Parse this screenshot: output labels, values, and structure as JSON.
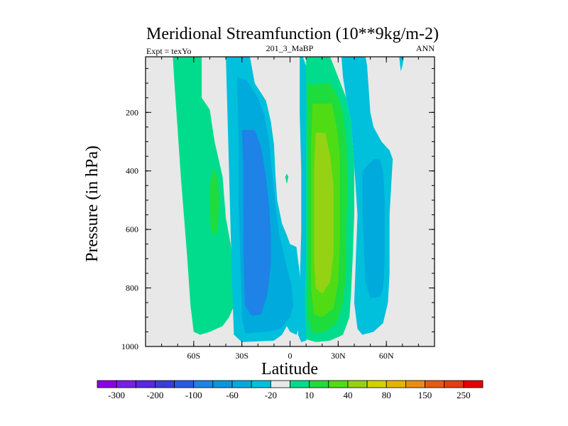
{
  "chart_data": {
    "type": "heatmap",
    "title": "Meridional Streamfunction (10**9kg/m-2)",
    "subtitle_left": "Expt = texYo",
    "subtitle_center": "201_3_MaBP",
    "subtitle_right": "ANN",
    "xlabel": "Latitude",
    "ylabel": "Pressure (in hPa)",
    "xlim": [
      -90,
      90
    ],
    "ylim": [
      1000,
      10
    ],
    "y_reversed": true,
    "x_ticks": [
      {
        "value": -60,
        "label": "60S"
      },
      {
        "value": -30,
        "label": "30S"
      },
      {
        "value": 0,
        "label": "0"
      },
      {
        "value": 30,
        "label": "30N"
      },
      {
        "value": 60,
        "label": "60N"
      }
    ],
    "y_ticks": [
      {
        "value": 200,
        "label": "200"
      },
      {
        "value": 400,
        "label": "400"
      },
      {
        "value": 600,
        "label": "600"
      },
      {
        "value": 800,
        "label": "800"
      },
      {
        "value": 1000,
        "label": "1000"
      }
    ],
    "grid": false,
    "missing_color": "#e8e8e8",
    "colorbar": {
      "placement": "bottom",
      "labels": [
        "-300",
        "-200",
        "-100",
        "-60",
        "-20",
        "10",
        "40",
        "80",
        "150",
        "250"
      ],
      "colors": [
        "#8c00e6",
        "#7a1ee8",
        "#5a28e0",
        "#3c3cdc",
        "#285ae6",
        "#1e82e6",
        "#0a96dc",
        "#00aadc",
        "#00c0dc",
        "#e8e8e8",
        "#00dc8c",
        "#1edc3c",
        "#50dc14",
        "#96d214",
        "#d2d200",
        "#e6b400",
        "#eb8c14",
        "#e65a14",
        "#e63c14",
        "#e60000"
      ]
    },
    "regions": [
      {
        "level": "10",
        "color": "#00dc8c",
        "polygon": [
          [
            -73,
            10
          ],
          [
            -55,
            10
          ],
          [
            -55,
            150
          ],
          [
            -50,
            190
          ],
          [
            -47,
            300
          ],
          [
            -42,
            420
          ],
          [
            -40,
            560
          ],
          [
            -37,
            650
          ],
          [
            -35,
            760
          ],
          [
            -34,
            850
          ],
          [
            -38,
            900
          ],
          [
            -42,
            930
          ],
          [
            -50,
            950
          ],
          [
            -56,
            960
          ],
          [
            -60,
            950
          ],
          [
            -62,
            860
          ],
          [
            -64,
            700
          ],
          [
            -66,
            560
          ],
          [
            -68,
            420
          ],
          [
            -70,
            260
          ],
          [
            -72,
            100
          ]
        ]
      },
      {
        "level": "40",
        "color": "#1edc3c",
        "polygon": [
          [
            -48,
            390
          ],
          [
            -45,
            430
          ],
          [
            -44,
            510
          ],
          [
            -45,
            580
          ],
          [
            -46,
            620
          ],
          [
            -49,
            610
          ],
          [
            -50,
            540
          ],
          [
            -50,
            450
          ]
        ]
      },
      {
        "level": "-20",
        "color": "#00c0dc",
        "polygon": [
          [
            -40,
            10
          ],
          [
            -25,
            10
          ],
          [
            -22,
            100
          ],
          [
            -15,
            160
          ],
          [
            -12,
            230
          ],
          [
            -10,
            310
          ],
          [
            -9,
            420
          ],
          [
            -8,
            500
          ],
          [
            -5,
            580
          ],
          [
            -2,
            620
          ],
          [
            0,
            650
          ],
          [
            4,
            660
          ],
          [
            6,
            750
          ],
          [
            7,
            850
          ],
          [
            6,
            930
          ],
          [
            4,
            960
          ],
          [
            0,
            950
          ],
          [
            -2,
            930
          ],
          [
            -5,
            960
          ],
          [
            -10,
            980
          ],
          [
            -30,
            985
          ],
          [
            -35,
            960
          ],
          [
            -36,
            800
          ],
          [
            -37,
            600
          ],
          [
            -38,
            400
          ],
          [
            -39,
            200
          ]
        ]
      },
      {
        "level": "-60",
        "color": "#00aadc",
        "polygon": [
          [
            -33,
            80
          ],
          [
            -27,
            90
          ],
          [
            -20,
            150
          ],
          [
            -16,
            210
          ],
          [
            -13,
            300
          ],
          [
            -11,
            420
          ],
          [
            -9,
            520
          ],
          [
            -7,
            610
          ],
          [
            -4,
            680
          ],
          [
            -2,
            730
          ],
          [
            1,
            790
          ],
          [
            2,
            860
          ],
          [
            0,
            900
          ],
          [
            -3,
            920
          ],
          [
            -6,
            940
          ],
          [
            -15,
            950
          ],
          [
            -28,
            955
          ],
          [
            -30,
            900
          ],
          [
            -31,
            700
          ],
          [
            -32,
            500
          ],
          [
            -32,
            300
          ]
        ]
      },
      {
        "level": "-100",
        "color": "#1e82e6",
        "polygon": [
          [
            -30,
            260
          ],
          [
            -22,
            260
          ],
          [
            -18,
            320
          ],
          [
            -15,
            420
          ],
          [
            -13,
            520
          ],
          [
            -12,
            620
          ],
          [
            -12,
            720
          ],
          [
            -14,
            820
          ],
          [
            -18,
            890
          ],
          [
            -24,
            895
          ],
          [
            -28,
            860
          ],
          [
            -29,
            700
          ],
          [
            -29,
            500
          ],
          [
            -29,
            380
          ]
        ]
      },
      {
        "level": "-20",
        "color": "#00c0dc",
        "polygon": [
          [
            6,
            10
          ],
          [
            8,
            10
          ],
          [
            10,
            40
          ],
          [
            12,
            110
          ],
          [
            14,
            200
          ],
          [
            15,
            300
          ],
          [
            16,
            400
          ],
          [
            16,
            500
          ],
          [
            16,
            600
          ],
          [
            16,
            700
          ],
          [
            15,
            800
          ],
          [
            14,
            880
          ],
          [
            12,
            950
          ],
          [
            10,
            980
          ],
          [
            7,
            985
          ],
          [
            5,
            960
          ],
          [
            6,
            800
          ],
          [
            7,
            600
          ],
          [
            7,
            400
          ],
          [
            6,
            200
          ]
        ]
      },
      {
        "level": "10",
        "color": "#00dc8c",
        "polygon": [
          [
            10,
            10
          ],
          [
            25,
            10
          ],
          [
            30,
            80
          ],
          [
            35,
            150
          ],
          [
            38,
            230
          ],
          [
            40,
            380
          ],
          [
            40,
            550
          ],
          [
            39,
            700
          ],
          [
            38,
            820
          ],
          [
            37,
            900
          ],
          [
            33,
            960
          ],
          [
            25,
            980
          ],
          [
            16,
            985
          ],
          [
            10,
            975
          ],
          [
            9,
            850
          ],
          [
            10,
            700
          ],
          [
            10,
            500
          ],
          [
            10,
            300
          ],
          [
            10,
            120
          ]
        ]
      },
      {
        "level": "40",
        "color": "#1edc3c",
        "polygon": [
          [
            11,
            105
          ],
          [
            25,
            100
          ],
          [
            30,
            150
          ],
          [
            33,
            200
          ],
          [
            35,
            300
          ],
          [
            36,
            450
          ],
          [
            35,
            600
          ],
          [
            35,
            750
          ],
          [
            33,
            850
          ],
          [
            29,
            920
          ],
          [
            22,
            950
          ],
          [
            14,
            955
          ],
          [
            11,
            900
          ],
          [
            11,
            700
          ],
          [
            11,
            500
          ],
          [
            11,
            300
          ]
        ]
      },
      {
        "level": "80",
        "color": "#50dc14",
        "polygon": [
          [
            14,
            170
          ],
          [
            26,
            170
          ],
          [
            29,
            250
          ],
          [
            31,
            350
          ],
          [
            31,
            500
          ],
          [
            31,
            650
          ],
          [
            30,
            780
          ],
          [
            27,
            870
          ],
          [
            20,
            900
          ],
          [
            15,
            890
          ],
          [
            13,
            800
          ],
          [
            13,
            650
          ],
          [
            13,
            500
          ],
          [
            13,
            330
          ]
        ]
      },
      {
        "level": "150",
        "color": "#96d214",
        "polygon": [
          [
            16,
            270
          ],
          [
            22,
            270
          ],
          [
            25,
            350
          ],
          [
            27,
            450
          ],
          [
            27,
            560
          ],
          [
            27,
            680
          ],
          [
            25,
            780
          ],
          [
            20,
            820
          ],
          [
            16,
            800
          ],
          [
            15,
            700
          ],
          [
            15,
            550
          ],
          [
            15,
            400
          ]
        ]
      },
      {
        "level": "-20",
        "color": "#00c0dc",
        "polygon": [
          [
            32,
            10
          ],
          [
            47,
            10
          ],
          [
            48,
            40
          ],
          [
            49,
            120
          ],
          [
            50,
            200
          ],
          [
            52,
            250
          ],
          [
            57,
            300
          ],
          [
            62,
            330
          ],
          [
            64,
            360
          ],
          [
            63,
            450
          ],
          [
            62,
            550
          ],
          [
            62,
            650
          ],
          [
            62,
            750
          ],
          [
            61,
            850
          ],
          [
            58,
            920
          ],
          [
            52,
            950
          ],
          [
            45,
            960
          ],
          [
            42,
            940
          ],
          [
            40,
            850
          ],
          [
            41,
            700
          ],
          [
            42,
            550
          ],
          [
            40,
            380
          ],
          [
            38,
            230
          ],
          [
            35,
            150
          ],
          [
            33,
            80
          ]
        ]
      },
      {
        "level": "-60",
        "color": "#00aadc",
        "polygon": [
          [
            45,
            400
          ],
          [
            52,
            360
          ],
          [
            56,
            360
          ],
          [
            58,
            400
          ],
          [
            59,
            500
          ],
          [
            59,
            600
          ],
          [
            59,
            700
          ],
          [
            58,
            800
          ],
          [
            56,
            830
          ],
          [
            50,
            835
          ],
          [
            47,
            780
          ],
          [
            46,
            650
          ],
          [
            45,
            530
          ]
        ]
      },
      {
        "level": "-20",
        "color": "#00c0dc",
        "polygon": [
          [
            68,
            10
          ],
          [
            71,
            10
          ],
          [
            70,
            40
          ],
          [
            69,
            60
          ]
        ]
      },
      {
        "level": "10",
        "color": "#00dc8c",
        "polygon": [
          [
            -3,
            420
          ],
          [
            -2,
            410
          ],
          [
            -1,
            420
          ],
          [
            -2,
            445
          ]
        ]
      }
    ]
  }
}
